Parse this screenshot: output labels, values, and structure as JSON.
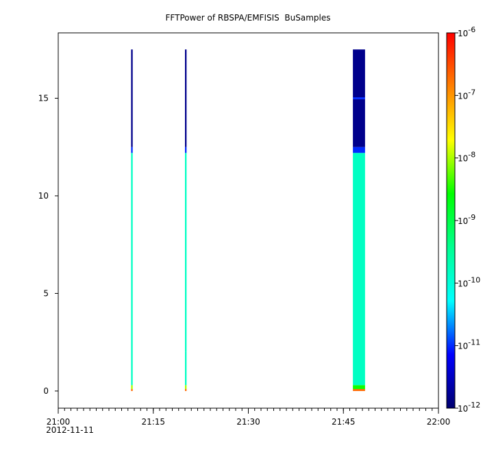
{
  "chart_data": {
    "type": "spectrogram",
    "title": "FFTPower of RBSPA/EMFISIS  BuSamples",
    "xlim": [
      "2012-11-11 21:00:00",
      "2012-11-11 22:00:00"
    ],
    "xticks": [
      {
        "value": "2012-11-11 21:00:00",
        "label": "21:00"
      },
      {
        "value": "2012-11-11 21:15:00",
        "label": "21:15"
      },
      {
        "value": "2012-11-11 21:30:00",
        "label": "21:30"
      },
      {
        "value": "2012-11-11 21:45:00",
        "label": "21:45"
      },
      {
        "value": "2012-11-11 22:00:00",
        "label": "22:00"
      }
    ],
    "date_label": "2012-11-11",
    "ylim": [
      -0.88,
      18.35
    ],
    "yticks": [
      0,
      5,
      10,
      15
    ],
    "zlim": [
      1e-12,
      1e-06
    ],
    "zlog": true,
    "zticks": [
      {
        "value": 1e-12,
        "label": "10",
        "superscript": "-12"
      },
      {
        "value": 1e-11,
        "label": "10",
        "superscript": "-11"
      },
      {
        "value": 1e-10,
        "label": "10",
        "superscript": "-10"
      },
      {
        "value": 1e-09,
        "label": "10",
        "superscript": "-9"
      },
      {
        "value": 1e-08,
        "label": "10",
        "superscript": "-8"
      },
      {
        "value": 1e-07,
        "label": "10",
        "superscript": "-7"
      },
      {
        "value": 1e-06,
        "label": "10",
        "superscript": "-6"
      }
    ],
    "colormap": [
      "#00006e",
      "#0000ff",
      "#00ffff",
      "#00ff90",
      "#00ff00",
      "#ffff00",
      "#ff8000",
      "#ff0000"
    ],
    "columns": [
      {
        "start": "2012-11-11 21:11:30",
        "end": "2012-11-11 21:11:45",
        "freq_bins": [
          0,
          0.1,
          0.3,
          12.2,
          12.5,
          17.5
        ],
        "values": [
          2e-07,
          1e-08,
          1.5e-10,
          1e-11,
          1.5e-12
        ]
      },
      {
        "start": "2012-11-11 21:20:00",
        "end": "2012-11-11 21:20:15",
        "freq_bins": [
          0,
          0.1,
          0.3,
          2.0,
          12.2,
          12.5,
          17.5
        ],
        "values": [
          2e-07,
          1e-08,
          1.5e-10,
          1.5e-10,
          1e-11,
          1.5e-12
        ]
      },
      {
        "start": "2012-11-11 21:46:30",
        "end": "2012-11-11 21:48:25",
        "freq_bins": [
          0,
          0.1,
          0.3,
          12.2,
          12.5,
          14.95,
          15.05,
          17.5
        ],
        "values": [
          2e-07,
          3e-09,
          1.5e-10,
          1e-11,
          1.5e-12,
          1e-11,
          1.5e-12
        ]
      }
    ]
  }
}
